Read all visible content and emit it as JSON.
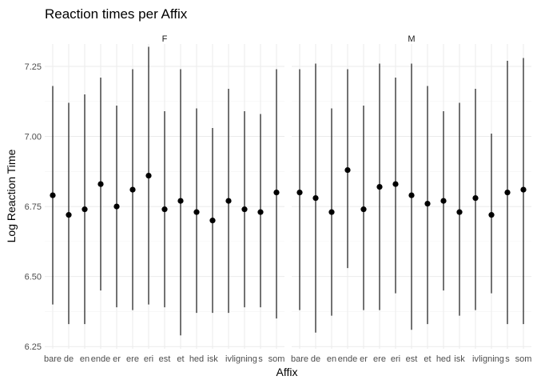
{
  "chart_data": {
    "type": "pointrange",
    "title": "Reaction times per Affix",
    "xlabel": "Affix",
    "ylabel": "Log Reaction Time",
    "ylim": [
      6.25,
      7.33
    ],
    "yticks": [
      "6.25",
      "6.50",
      "6.75",
      "7.00",
      "7.25"
    ],
    "grid": true,
    "categories": [
      "bare",
      "de",
      "en",
      "ende",
      "er",
      "ere",
      "eri",
      "est",
      "et",
      "hed",
      "isk",
      "iv",
      "ligning",
      "s",
      "som"
    ],
    "panels": [
      {
        "name": "F",
        "points": [
          {
            "x": "bare",
            "y": 6.79,
            "low": 6.4,
            "high": 7.18
          },
          {
            "x": "de",
            "y": 6.72,
            "low": 6.33,
            "high": 7.12
          },
          {
            "x": "en",
            "y": 6.74,
            "low": 6.33,
            "high": 7.15
          },
          {
            "x": "ende",
            "y": 6.83,
            "low": 6.45,
            "high": 7.21
          },
          {
            "x": "er",
            "y": 6.75,
            "low": 6.39,
            "high": 7.11
          },
          {
            "x": "ere",
            "y": 6.81,
            "low": 6.38,
            "high": 7.24
          },
          {
            "x": "eri",
            "y": 6.86,
            "low": 6.4,
            "high": 7.32
          },
          {
            "x": "est",
            "y": 6.74,
            "low": 6.39,
            "high": 7.09
          },
          {
            "x": "et",
            "y": 6.77,
            "low": 6.29,
            "high": 7.24
          },
          {
            "x": "hed",
            "y": 6.73,
            "low": 6.37,
            "high": 7.1
          },
          {
            "x": "isk",
            "y": 6.7,
            "low": 6.37,
            "high": 7.03
          },
          {
            "x": "iv",
            "y": 6.77,
            "low": 6.37,
            "high": 7.17
          },
          {
            "x": "ligning",
            "y": 6.74,
            "low": 6.39,
            "high": 7.09
          },
          {
            "x": "s",
            "y": 6.73,
            "low": 6.39,
            "high": 7.08
          },
          {
            "x": "som",
            "y": 6.8,
            "low": 6.35,
            "high": 7.24
          }
        ]
      },
      {
        "name": "M",
        "points": [
          {
            "x": "bare",
            "y": 6.8,
            "low": 6.38,
            "high": 7.24
          },
          {
            "x": "de",
            "y": 6.78,
            "low": 6.3,
            "high": 7.26
          },
          {
            "x": "en",
            "y": 6.73,
            "low": 6.36,
            "high": 7.1
          },
          {
            "x": "ende",
            "y": 6.88,
            "low": 6.53,
            "high": 7.24
          },
          {
            "x": "er",
            "y": 6.74,
            "low": 6.38,
            "high": 7.11
          },
          {
            "x": "ere",
            "y": 6.82,
            "low": 6.38,
            "high": 7.26
          },
          {
            "x": "eri",
            "y": 6.83,
            "low": 6.44,
            "high": 7.21
          },
          {
            "x": "est",
            "y": 6.79,
            "low": 6.31,
            "high": 7.26
          },
          {
            "x": "et",
            "y": 6.76,
            "low": 6.33,
            "high": 7.18
          },
          {
            "x": "hed",
            "y": 6.77,
            "low": 6.45,
            "high": 7.09
          },
          {
            "x": "isk",
            "y": 6.73,
            "low": 6.36,
            "high": 7.12
          },
          {
            "x": "iv",
            "y": 6.78,
            "low": 6.38,
            "high": 7.17
          },
          {
            "x": "ligning",
            "y": 6.72,
            "low": 6.44,
            "high": 7.01
          },
          {
            "x": "s",
            "y": 6.8,
            "low": 6.33,
            "high": 7.27
          },
          {
            "x": "som",
            "y": 6.81,
            "low": 6.33,
            "high": 7.28
          }
        ]
      }
    ]
  },
  "colors": {
    "marks": "#000000",
    "grid_major": "#ebebeb",
    "grid_minor": "#f4f4f4"
  }
}
